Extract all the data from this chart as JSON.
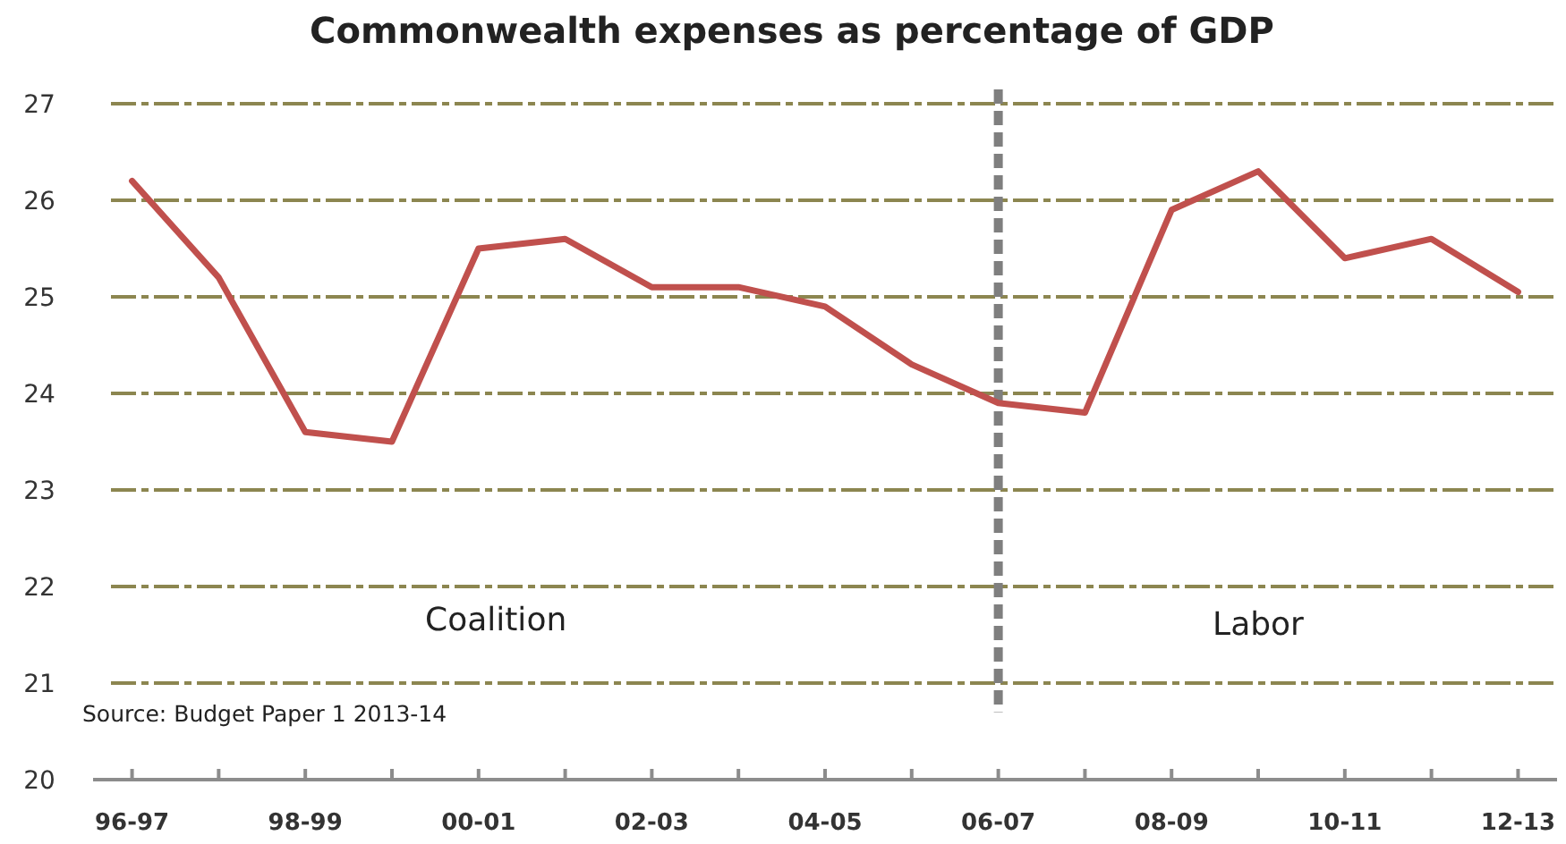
{
  "chart_data": {
    "type": "line",
    "title": "Commonwealth expenses as percentage of GDP",
    "categories": [
      "96-97",
      null,
      "98-99",
      null,
      "00-01",
      null,
      "02-03",
      null,
      "04-05",
      null,
      "06-07",
      null,
      "08-09",
      null,
      "10-11",
      null,
      "12-13"
    ],
    "ylim": [
      20,
      27
    ],
    "yticks": [
      20,
      21,
      22,
      23,
      24,
      25,
      26,
      27
    ],
    "series": [
      {
        "color": "#c0504d",
        "values": [
          26.2,
          25.2,
          23.6,
          23.5,
          25.5,
          25.6,
          25.1,
          25.1,
          24.9,
          24.3,
          23.9,
          23.8,
          25.9,
          26.3,
          25.4,
          25.6,
          25.05
        ]
      }
    ],
    "ref_lines": [
      {
        "axis": "x",
        "value": "06-07",
        "color": "#7f7f7f",
        "line_style": "dashed"
      }
    ],
    "annotations": [
      "Coalition",
      "Labor",
      "Source:  Budget Paper 1 2013-14"
    ],
    "grid": "y",
    "marker": "none",
    "line_style": "solid"
  }
}
